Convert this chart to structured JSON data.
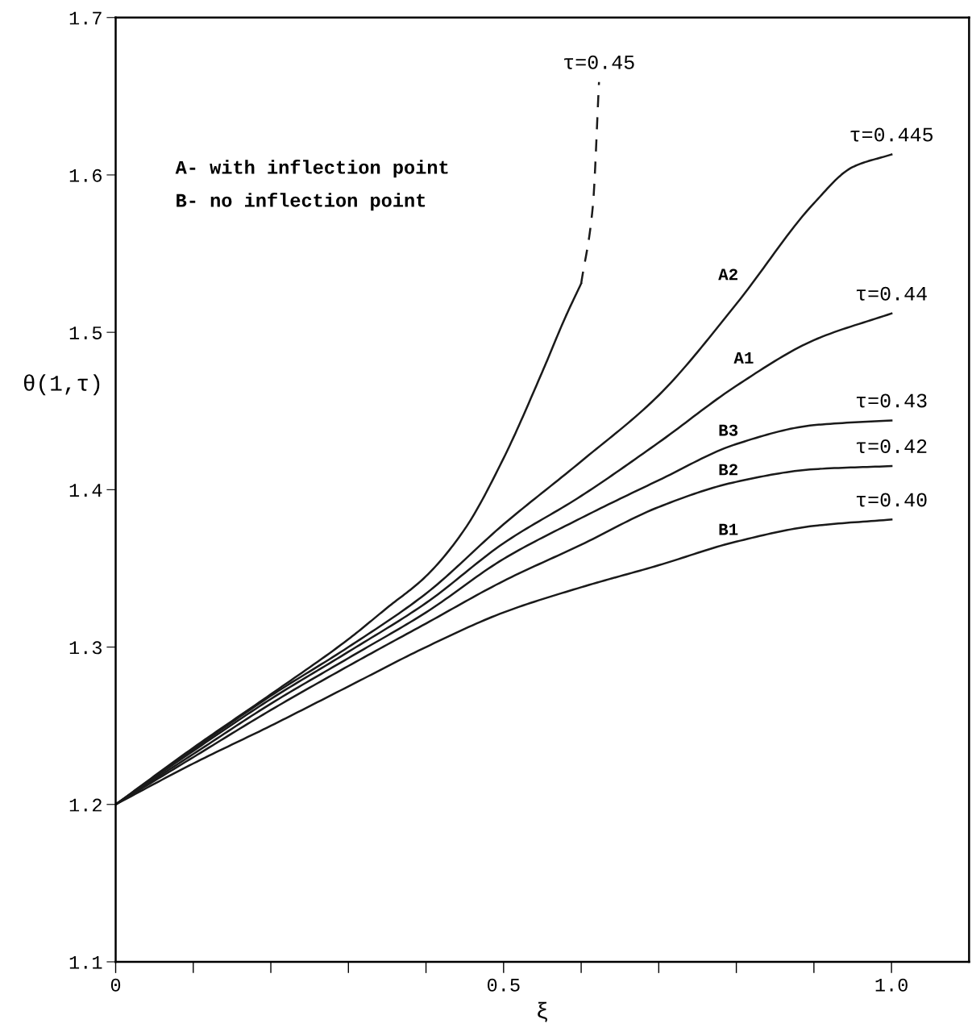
{
  "chart_data": {
    "type": "line",
    "xlabel": "ξ",
    "ylabel": "θ(1,τ)",
    "xlim": [
      0,
      1.1
    ],
    "ylim": [
      1.1,
      1.7
    ],
    "xticks": [
      0,
      {
        "value": 0.1,
        "label": null
      },
      {
        "value": 0.2,
        "label": null
      },
      {
        "value": 0.3,
        "label": null
      },
      {
        "value": 0.4,
        "label": null
      },
      {
        "value": 0.5,
        "label": "0.5"
      },
      {
        "value": 0.6,
        "label": null
      },
      {
        "value": 0.7,
        "label": null
      },
      {
        "value": 0.8,
        "label": null
      },
      {
        "value": 0.9,
        "label": null
      },
      {
        "value": 1.0,
        "label": "1.0"
      }
    ],
    "yticks": [
      1.1,
      1.2,
      1.3,
      1.4,
      1.5,
      1.6,
      1.7
    ],
    "grid": false,
    "marker": "none",
    "series": [
      {
        "color": "#1a1a1a",
        "line_style": "solid",
        "x": [
          0,
          0.1,
          0.2,
          0.3,
          0.35,
          0.4,
          0.45,
          0.5,
          0.55,
          0.58,
          0.6
        ],
        "values": [
          1.2,
          1.236,
          1.27,
          1.305,
          1.325,
          1.345,
          1.375,
          1.42,
          1.475,
          1.51,
          1.531
        ]
      },
      {
        "color": "#1a1a1a",
        "line_style": "dashed",
        "x": [
          0.6,
          0.615,
          0.623
        ],
        "values": [
          1.531,
          1.58,
          1.659
        ]
      },
      {
        "color": "#1a1a1a",
        "line_style": "solid",
        "x": [
          0,
          0.1,
          0.2,
          0.3,
          0.4,
          0.5,
          0.6,
          0.7,
          0.8,
          0.9,
          0.95,
          1.0
        ],
        "values": [
          1.2,
          1.235,
          1.269,
          1.3,
          1.334,
          1.378,
          1.418,
          1.46,
          1.518,
          1.582,
          1.605,
          1.613
        ]
      },
      {
        "color": "#1a1a1a",
        "line_style": "solid",
        "x": [
          0,
          0.1,
          0.2,
          0.3,
          0.4,
          0.5,
          0.6,
          0.7,
          0.8,
          0.9,
          1.0
        ],
        "values": [
          1.2,
          1.234,
          1.267,
          1.297,
          1.328,
          1.366,
          1.396,
          1.43,
          1.466,
          1.495,
          1.512
        ]
      },
      {
        "color": "#1a1a1a",
        "line_style": "solid",
        "x": [
          0,
          0.1,
          0.2,
          0.3,
          0.4,
          0.5,
          0.6,
          0.7,
          0.8,
          0.9,
          1.0
        ],
        "values": [
          1.2,
          1.232,
          1.264,
          1.293,
          1.322,
          1.356,
          1.382,
          1.406,
          1.429,
          1.441,
          1.444
        ]
      },
      {
        "color": "#1a1a1a",
        "line_style": "solid",
        "x": [
          0,
          0.1,
          0.2,
          0.3,
          0.4,
          0.5,
          0.6,
          0.7,
          0.8,
          0.9,
          1.0
        ],
        "values": [
          1.2,
          1.23,
          1.26,
          1.288,
          1.315,
          1.342,
          1.365,
          1.389,
          1.405,
          1.413,
          1.415
        ]
      },
      {
        "color": "#1a1a1a",
        "line_style": "solid",
        "x": [
          0,
          0.1,
          0.2,
          0.3,
          0.4,
          0.5,
          0.6,
          0.7,
          0.8,
          0.9,
          1.0
        ],
        "values": [
          1.2,
          1.226,
          1.25,
          1.275,
          1.3,
          1.322,
          1.338,
          1.352,
          1.367,
          1.377,
          1.381
        ]
      }
    ],
    "annotations": [
      {
        "text": "τ=0.45",
        "x": 0.623,
        "y": 1.659
      },
      {
        "text": "τ=0.445",
        "x": 1.0,
        "y": 1.613
      },
      {
        "text": "τ=0.44",
        "x": 1.0,
        "y": 1.512
      },
      {
        "text": "τ=0.43",
        "x": 1.0,
        "y": 1.444
      },
      {
        "text": "τ=0.42",
        "x": 1.0,
        "y": 1.415
      },
      {
        "text": "τ=0.40",
        "x": 1.0,
        "y": 1.381
      },
      {
        "text": "A2",
        "x": 0.82,
        "y": 1.531
      },
      {
        "text": "A1",
        "x": 0.84,
        "y": 1.478
      },
      {
        "text": "B3",
        "x": 0.82,
        "y": 1.432
      },
      {
        "text": "B2",
        "x": 0.82,
        "y": 1.407
      },
      {
        "text": "B1",
        "x": 0.82,
        "y": 1.369
      },
      "A- with inflection point",
      "B- no inflection point"
    ]
  }
}
